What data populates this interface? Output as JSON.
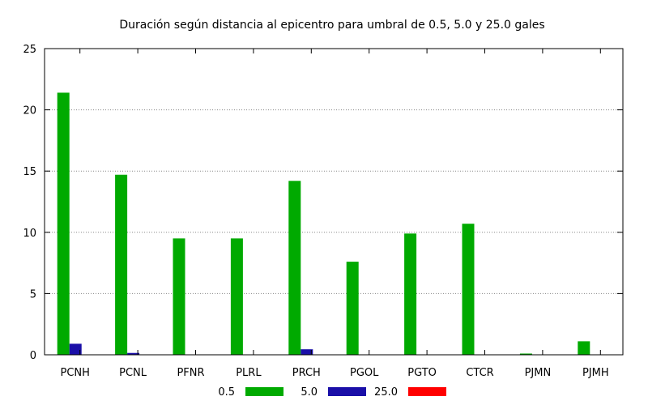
{
  "chart_data": {
    "type": "bar",
    "title": "Duración según distancia al epicentro para umbral de 0.5, 5.0 y 25.0 gales",
    "xlabel": "",
    "ylabel": "",
    "categories": [
      "PCNH",
      "PCNL",
      "PFNR",
      "PLRL",
      "PRCH",
      "PGOL",
      "PGTO",
      "CTCR",
      "PJMN",
      "PJMH"
    ],
    "series": [
      {
        "name": "0.5",
        "color": "#00aa00",
        "values": [
          21.4,
          14.7,
          9.5,
          9.5,
          14.2,
          7.6,
          9.9,
          10.7,
          0.1,
          1.1
        ]
      },
      {
        "name": "5.0",
        "color": "#1a0fa8",
        "values": [
          0.9,
          0.15,
          0,
          0,
          0.45,
          0,
          0,
          0,
          0,
          0
        ]
      },
      {
        "name": "25.0",
        "color": "#ff0000",
        "values": [
          0,
          0,
          0,
          0,
          0,
          0,
          0,
          0,
          0,
          0
        ]
      }
    ],
    "ylim": [
      0,
      25
    ],
    "yticks": [
      0,
      5,
      10,
      15,
      20,
      25
    ],
    "grid": true,
    "legend_position": "bottom"
  }
}
